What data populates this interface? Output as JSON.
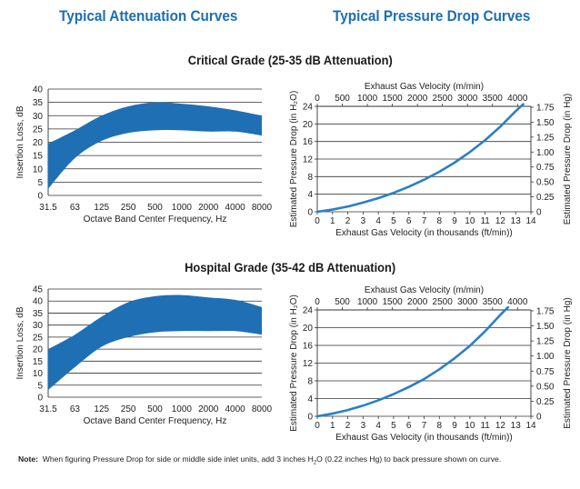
{
  "headers": {
    "left": "Typical Attenuation Curves",
    "right": "Typical Pressure Drop Curves"
  },
  "grades": {
    "critical": "Critical Grade (25-35 dB Attenuation)",
    "hospital": "Hospital Grade (35-42 dB Attenuation)"
  },
  "note": {
    "label": "Note:",
    "pre": "When figuring Pressure Drop for side or middle side inlet units, add 3 inches H",
    "sub": "2",
    "post": "O (0.22 inches Hg) to back pressure shown on curve."
  },
  "colors": {
    "band": "#1f6fb5",
    "curve": "#2a80c4",
    "header": "#1a6fb5"
  },
  "chart_data": [
    {
      "id": "att1",
      "type": "area",
      "xlabel": "Octave Band Center Frequency, Hz",
      "ylabel": "Insertion Loss, dB",
      "categories": [
        "31.5",
        "63",
        "125",
        "250",
        "500",
        "1000",
        "2000",
        "4000",
        "8000"
      ],
      "ylim": [
        0,
        40
      ],
      "yticks": [
        0,
        5,
        10,
        15,
        20,
        25,
        30,
        35,
        40
      ],
      "grid": "horizontal",
      "upper": [
        19.5,
        24.5,
        30,
        33.5,
        35,
        34.5,
        33.5,
        32,
        30
      ],
      "lower": [
        2.5,
        14,
        20.5,
        23.5,
        24.5,
        24.5,
        24,
        24,
        22.5
      ]
    },
    {
      "id": "pd1",
      "type": "line",
      "xlabel": "Exhaust Gas Velocity (in thousands (ft/min))",
      "ylabel": "Estimated Pressure Drop (in H₂O)",
      "y2label": "Estimated Pressure Drop (in Hg)",
      "x2label": "Exhaust Gas Velocity (m/min)",
      "xlim": [
        0,
        14
      ],
      "xticks": [
        0,
        1,
        2,
        3,
        4,
        5,
        6,
        7,
        8,
        9,
        10,
        11,
        12,
        13,
        14
      ],
      "ylim": [
        0,
        24
      ],
      "yticks": [
        0,
        4,
        8,
        12,
        16,
        20,
        24
      ],
      "y2ticks": [
        "0",
        "0.25",
        "0.50",
        "0.75",
        "1.00",
        "1.25",
        "1.50",
        "1.75"
      ],
      "x2ticks": [
        0,
        500,
        1000,
        1500,
        2000,
        2500,
        3000,
        3500,
        4000
      ],
      "grid": "horizontal",
      "x": [
        0,
        1,
        2,
        3,
        4,
        5,
        6,
        7,
        8,
        9,
        10,
        11,
        12,
        13,
        13.5
      ],
      "y": [
        0,
        0.5,
        1.2,
        2.1,
        3.1,
        4.3,
        5.7,
        7.3,
        9.1,
        11.2,
        13.6,
        16.3,
        19.4,
        22.9,
        24.5
      ]
    },
    {
      "id": "att2",
      "type": "area",
      "xlabel": "Octave Band Center Frequency, Hz",
      "ylabel": "Insertion Loss, dB",
      "categories": [
        "31.5",
        "63",
        "125",
        "250",
        "500",
        "1000",
        "2000",
        "4000",
        "8000"
      ],
      "ylim": [
        0,
        45
      ],
      "yticks": [
        0,
        5,
        10,
        15,
        20,
        25,
        30,
        35,
        40,
        45
      ],
      "grid": "horizontal",
      "upper": [
        20,
        26,
        33.5,
        39.5,
        42,
        42.5,
        41.5,
        40.5,
        37.5
      ],
      "lower": [
        3,
        12.5,
        21,
        25,
        27,
        27.5,
        27.5,
        27.5,
        26
      ]
    },
    {
      "id": "pd2",
      "type": "line",
      "xlabel": "Exhaust Gas Velocity (in thousands (ft/min))",
      "ylabel": "Estimated Pressure Drop (in H₂O)",
      "y2label": "Estimated Pressure Drop (in Hg)",
      "x2label": "Exhaust Gas Velocity (m/min)",
      "xlim": [
        0,
        14
      ],
      "xticks": [
        0,
        1,
        2,
        3,
        4,
        5,
        6,
        7,
        8,
        9,
        10,
        11,
        12,
        13,
        14
      ],
      "ylim": [
        0,
        24
      ],
      "yticks": [
        0,
        4,
        8,
        12,
        16,
        20,
        24
      ],
      "y2ticks": [
        "0",
        "0.25",
        "0.50",
        "0.75",
        "1.00",
        "1.25",
        "1.50",
        "1.75"
      ],
      "x2ticks": [
        0,
        500,
        1000,
        1500,
        2000,
        2500,
        3000,
        3500,
        4000
      ],
      "grid": "horizontal",
      "x": [
        0,
        1,
        2,
        3,
        4,
        5,
        6,
        7,
        8,
        9,
        10,
        11,
        12,
        12.5
      ],
      "y": [
        0,
        0.6,
        1.4,
        2.4,
        3.6,
        5.0,
        6.6,
        8.4,
        10.6,
        13.1,
        15.9,
        19.2,
        22.9,
        24.6
      ]
    }
  ]
}
